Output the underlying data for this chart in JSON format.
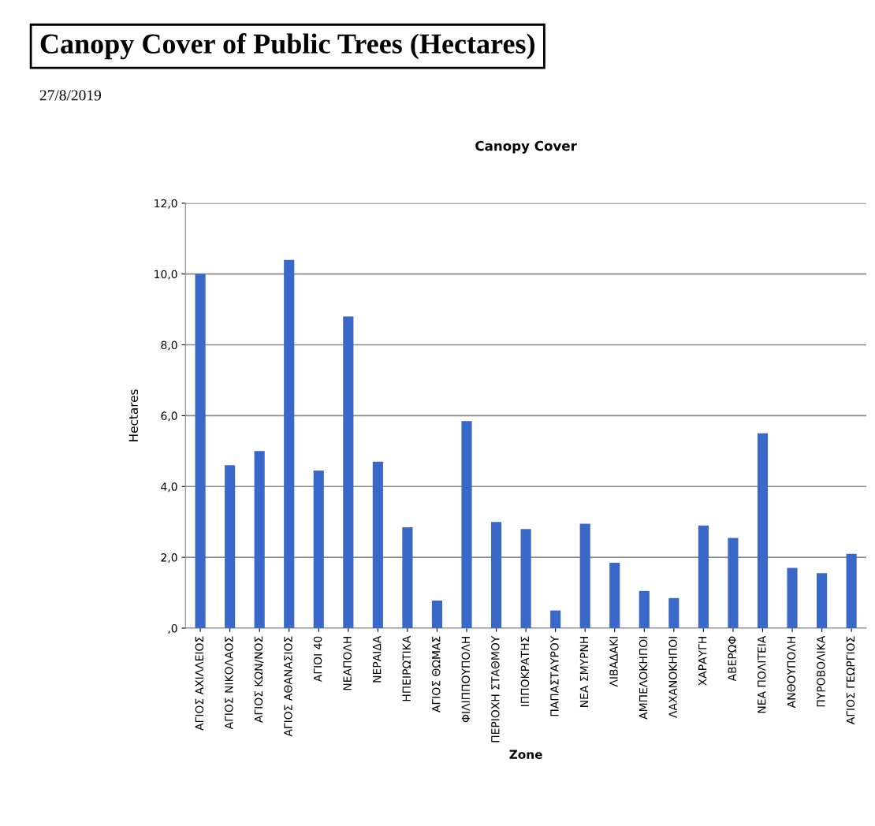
{
  "chart_data": {
    "type": "bar",
    "title": "Canopy Cover of Public Trees (Hectares)",
    "subtitle": "Canopy Cover",
    "annotations": [
      "27/8/2019"
    ],
    "xlabel": "Zone",
    "ylabel": "Hectares",
    "categories": [
      "ΑΓΙΟΣ ΑΧΙΛΛΕΙΟΣ",
      "ΑΓΙΟΣ ΝΙΚΟΛΑΟΣ",
      "ΑΓΙΟΣ ΚΩΝ/ΝΟΣ",
      "ΑΓΙΟΣ ΑΘΑΝΑΣΙΟΣ",
      "ΑΓΙΟΙ 40",
      "ΝΕΑΠΟΛΗ",
      "ΝΕΡΑΙΔΑ",
      "ΗΠΕΙΡΩΤΙΚΑ",
      "ΑΓΙΟΣ ΘΩΜΑΣ",
      "ΦΙΛΙΠΠΟΥΠΟΛΗ",
      "ΠΕΡΙΟΧΗ ΣΤΑΘΜΟΥ",
      "ΙΠΠΟΚΡΑΤΗΣ",
      "ΠΑΠΑΣΤΑΥΡΟΥ",
      "ΝΕΑ ΣΜΥΡΝΗ",
      "ΛΙΒΑΔΑΚΙ",
      "ΑΜΠΕΛΟΚΗΠΟΙ",
      "ΛΑΧΑΝΟΚΗΠΟΙ",
      "ΧΑΡΑΥΓΗ",
      "ΑΒΕΡΩΦ",
      "ΝΕΑ ΠΟΛΙΤΕΙΑ",
      "ΑΝΘΟΥΠΟΛΗ",
      "ΠΥΡΟΒΟΛΙΚΑ",
      "ΑΓΙΟΣ ΓΕΩΡΓΙΟΣ"
    ],
    "values": [
      10.0,
      4.6,
      5.0,
      10.4,
      4.45,
      8.8,
      4.7,
      2.85,
      0.78,
      5.85,
      3.0,
      2.8,
      0.5,
      2.95,
      1.85,
      1.05,
      0.85,
      2.9,
      2.55,
      5.5,
      1.7,
      1.55,
      2.1
    ],
    "color": "#3a68c8",
    "ylim": [
      0,
      12
    ],
    "yticks": [
      {
        "value": 0,
        "label": ",0"
      },
      {
        "value": 2,
        "label": "2,0"
      },
      {
        "value": 4,
        "label": "4,0"
      },
      {
        "value": 6,
        "label": "6,0"
      },
      {
        "value": 8,
        "label": "8,0"
      },
      {
        "value": 10,
        "label": "10,0"
      },
      {
        "value": 12,
        "label": "12,0"
      }
    ],
    "grid": "y",
    "legend": false
  }
}
